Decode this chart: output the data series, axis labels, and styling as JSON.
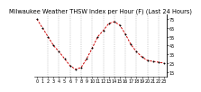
{
  "title": "Milwaukee Weather THSW Index per Hour (F) (Last 24 Hours)",
  "hours": [
    0,
    1,
    2,
    3,
    4,
    5,
    6,
    7,
    8,
    9,
    10,
    11,
    12,
    13,
    14,
    15,
    16,
    17,
    18,
    19,
    20,
    21,
    22,
    23
  ],
  "values": [
    75,
    65,
    55,
    45,
    38,
    30,
    22,
    18,
    20,
    30,
    42,
    55,
    62,
    70,
    72,
    68,
    58,
    46,
    38,
    32,
    28,
    27,
    26,
    25
  ],
  "line_color": "#cc0000",
  "marker_color": "#000000",
  "grid_color": "#888888",
  "bg_color": "#ffffff",
  "ylim": [
    10,
    80
  ],
  "ytick_vals": [
    15,
    25,
    35,
    45,
    55,
    65,
    75
  ],
  "ytick_labels": [
    "15",
    "25",
    "35",
    "45",
    "55",
    "65",
    "75"
  ],
  "title_fontsize": 4.8,
  "tick_fontsize": 3.5,
  "line_width": 0.7,
  "marker_size": 2.0
}
